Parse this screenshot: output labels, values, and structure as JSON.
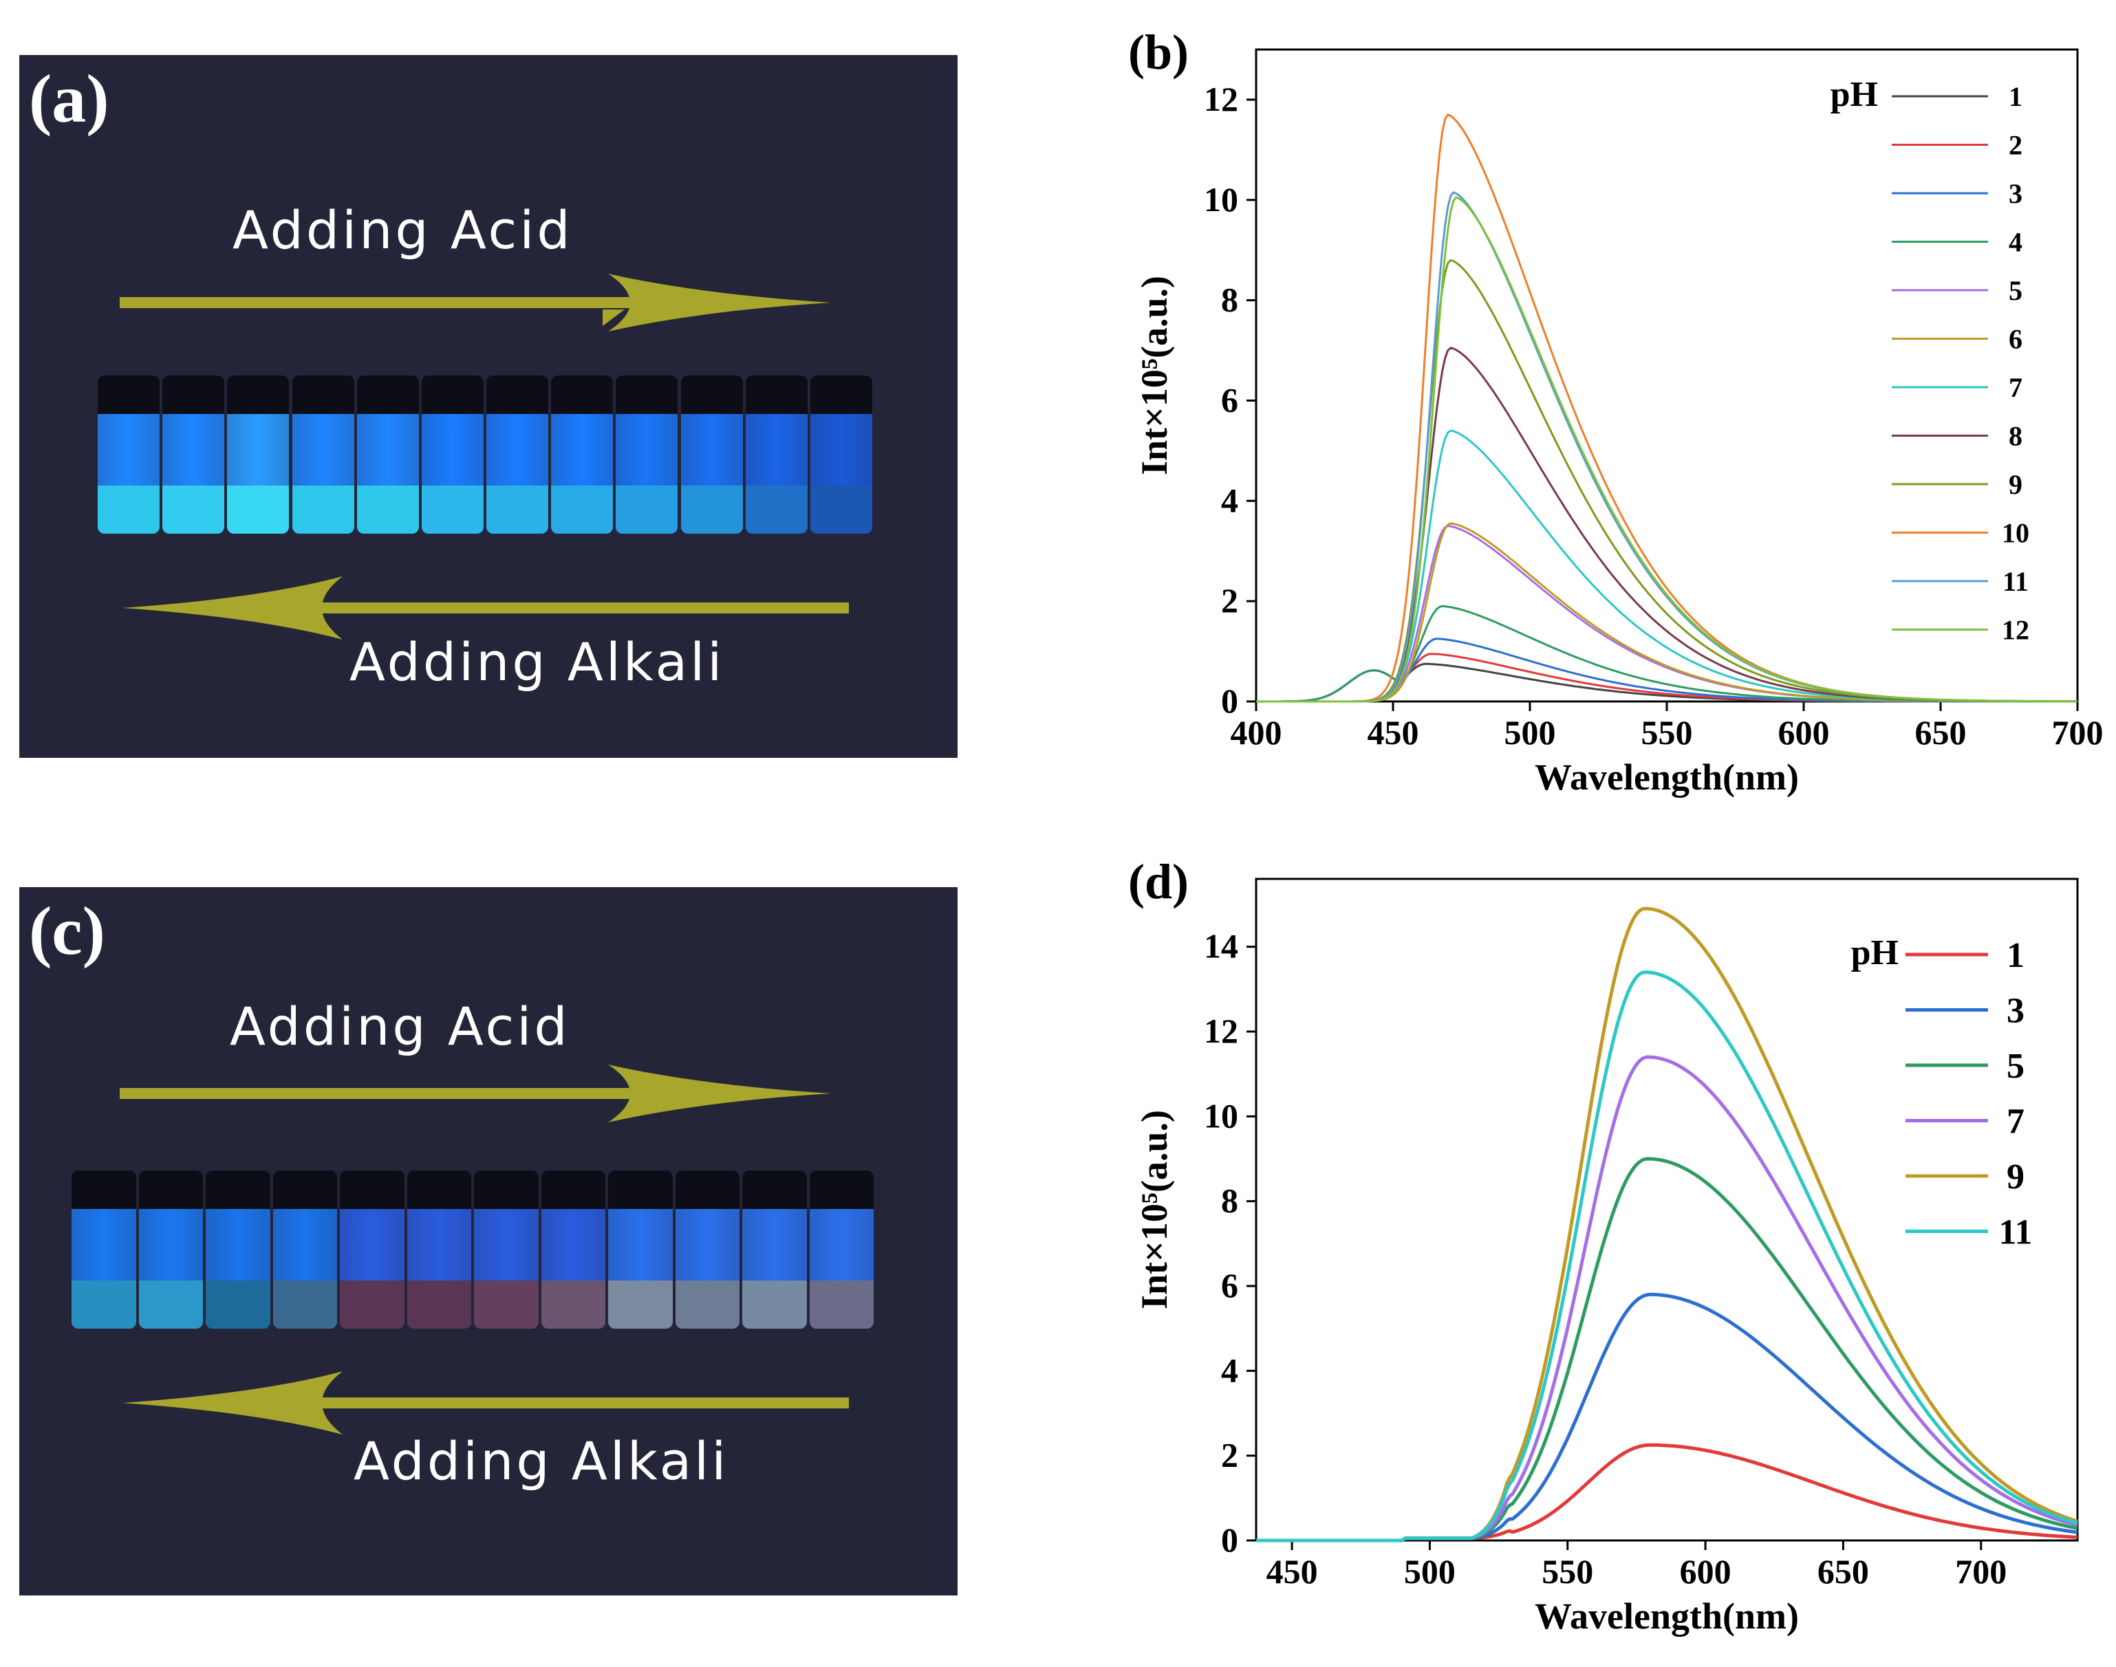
{
  "panel_a": {
    "label": "(a)",
    "top_text": "Adding Acid",
    "bottom_text": "Adding Alkali",
    "arrow_color": "#a8a62c",
    "vials": [
      {
        "glass": "#1f86ff",
        "liquid": "#2ec6ea"
      },
      {
        "glass": "#1f86ff",
        "liquid": "#33cbef"
      },
      {
        "glass": "#2a9cff",
        "liquid": "#38d8f2"
      },
      {
        "glass": "#1f86ff",
        "liquid": "#2ec6ea"
      },
      {
        "glass": "#1f86ff",
        "liquid": "#30c8ea"
      },
      {
        "glass": "#1a7cff",
        "liquid": "#2cb8ea"
      },
      {
        "glass": "#1a7cff",
        "liquid": "#2ab2e8"
      },
      {
        "glass": "#1a7cff",
        "liquid": "#28aae6"
      },
      {
        "glass": "#1a76f8",
        "liquid": "#26a0e2"
      },
      {
        "glass": "#1a70f2",
        "liquid": "#2494da"
      },
      {
        "glass": "#1a64e6",
        "liquid": "#2070c8"
      },
      {
        "glass": "#1a5ad8",
        "liquid": "#1a58b4"
      }
    ]
  },
  "panel_c": {
    "label": "(c)",
    "top_text": "Adding Acid",
    "bottom_text": "Adding Alkali",
    "arrow_color": "#a8a62c",
    "vials": [
      {
        "glass": "#1a78f0",
        "liquid": "#2690c0"
      },
      {
        "glass": "#1a78f0",
        "liquid": "#2a98c8"
      },
      {
        "glass": "#1a74ec",
        "liquid": "#1e6a9a"
      },
      {
        "glass": "#1a74ec",
        "liquid": "#3b6a90"
      },
      {
        "glass": "#2a5ce0",
        "liquid": "#5a3656"
      },
      {
        "glass": "#2a5ce0",
        "liquid": "#5a3656"
      },
      {
        "glass": "#2a5ce0",
        "liquid": "#62405e"
      },
      {
        "glass": "#2a5ce0",
        "liquid": "#6a5470"
      },
      {
        "glass": "#2a70ec",
        "liquid": "#7c8aa0"
      },
      {
        "glass": "#2a70ec",
        "liquid": "#6e7c96"
      },
      {
        "glass": "#2a70ec",
        "liquid": "#768aa4"
      },
      {
        "glass": "#2a70ec",
        "liquid": "#6a6c8a"
      }
    ]
  },
  "chart_data": [
    {
      "id": "b",
      "type": "line",
      "panel_label": "(b)",
      "xlabel": "Wavelength(nm)",
      "ylabel": "Int×10⁵(a.u.)",
      "xlim": [
        400,
        700
      ],
      "ylim": [
        0,
        13
      ],
      "xticks": [
        400,
        450,
        500,
        550,
        600,
        650,
        700
      ],
      "yticks": [
        0,
        2,
        4,
        6,
        8,
        10,
        12
      ],
      "legend_title": "pH",
      "legend_position": "top-right",
      "series": [
        {
          "name": "1",
          "peak_x": 462,
          "peak_y": 0.75,
          "color": "#444444"
        },
        {
          "name": "2",
          "peak_x": 464,
          "peak_y": 0.95,
          "color": "#e23a3a"
        },
        {
          "name": "3",
          "peak_x": 466,
          "peak_y": 1.25,
          "color": "#2d6fd1"
        },
        {
          "name": "4",
          "peak_x": 468,
          "peak_y": 1.9,
          "color": "#2e9c62"
        },
        {
          "name": "5",
          "peak_x": 470,
          "peak_y": 3.5,
          "color": "#a56ee6"
        },
        {
          "name": "6",
          "peak_x": 471,
          "peak_y": 3.55,
          "color": "#c19a24"
        },
        {
          "name": "7",
          "peak_x": 471,
          "peak_y": 5.4,
          "color": "#2ec7c7"
        },
        {
          "name": "8",
          "peak_x": 471,
          "peak_y": 7.05,
          "color": "#7a3a4a"
        },
        {
          "name": "9",
          "peak_x": 471,
          "peak_y": 8.8,
          "color": "#7e9a1c"
        },
        {
          "name": "10",
          "peak_x": 470,
          "peak_y": 11.7,
          "color": "#f07f2a"
        },
        {
          "name": "11",
          "peak_x": 472,
          "peak_y": 10.15,
          "color": "#5b9bd5"
        },
        {
          "name": "12",
          "peak_x": 473,
          "peak_y": 10.05,
          "color": "#7cc23a"
        }
      ]
    },
    {
      "id": "d",
      "type": "line",
      "panel_label": "(d)",
      "xlabel": "Wavelength(nm)",
      "ylabel": "Int×10⁵(a.u.)",
      "xlim": [
        437,
        735
      ],
      "ylim": [
        0,
        15.6
      ],
      "xticks": [
        450,
        500,
        550,
        600,
        650,
        700
      ],
      "yticks": [
        0,
        2,
        4,
        6,
        8,
        10,
        12,
        14
      ],
      "legend_title": "pH",
      "legend_position": "top-right",
      "series": [
        {
          "name": "1",
          "peak_x": 580,
          "peak_y": 2.25,
          "color": "#e23a3a"
        },
        {
          "name": "3",
          "peak_x": 580,
          "peak_y": 5.8,
          "color": "#2d6fd1"
        },
        {
          "name": "5",
          "peak_x": 579,
          "peak_y": 9.0,
          "color": "#2e9c62"
        },
        {
          "name": "7",
          "peak_x": 579,
          "peak_y": 11.4,
          "color": "#a56ee6"
        },
        {
          "name": "9",
          "peak_x": 578,
          "peak_y": 14.9,
          "color": "#c19a24"
        },
        {
          "name": "11",
          "peak_x": 578,
          "peak_y": 13.4,
          "color": "#2ec7c7"
        }
      ]
    }
  ]
}
